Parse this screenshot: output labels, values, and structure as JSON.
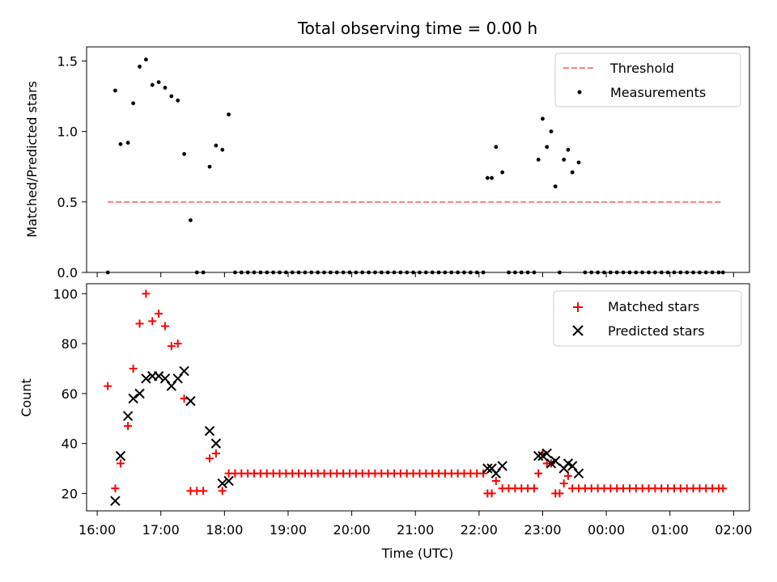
{
  "chart_data": [
    {
      "type": "scatter",
      "title": "Total observing time = 0.00 h",
      "ylabel": "Matched/Predicted stars",
      "xlabel": "",
      "ylim": [
        0,
        1.6
      ],
      "yticks": [
        "0.0",
        "0.5",
        "1.0",
        "1.5"
      ],
      "threshold": {
        "name": "Threshold",
        "value": 0.5,
        "x_range": [
          "16:10",
          "25:50"
        ],
        "color": "#ff7f7f",
        "style": "dashed"
      },
      "measurements": {
        "name": "Measurements",
        "color": "#000000",
        "points": [
          [
            "16:10",
            0.0
          ],
          [
            "16:17",
            1.29
          ],
          [
            "16:22",
            0.91
          ],
          [
            "16:29",
            0.92
          ],
          [
            "16:34",
            1.2
          ],
          [
            "16:40",
            1.46
          ],
          [
            "16:46",
            1.51
          ],
          [
            "16:52",
            1.33
          ],
          [
            "16:58",
            1.35
          ],
          [
            "17:04",
            1.31
          ],
          [
            "17:10",
            1.25
          ],
          [
            "17:16",
            1.22
          ],
          [
            "17:22",
            0.84
          ],
          [
            "17:28",
            0.37
          ],
          [
            "17:34",
            0.0
          ],
          [
            "17:40",
            0.0
          ],
          [
            "17:46",
            0.75
          ],
          [
            "17:52",
            0.9
          ],
          [
            "17:58",
            0.87
          ],
          [
            "18:04",
            1.12
          ],
          [
            "18:10",
            0.0
          ],
          [
            "18:16",
            0.0
          ],
          [
            "18:22",
            0.0
          ],
          [
            "18:28",
            0.0
          ],
          [
            "18:34",
            0.0
          ],
          [
            "18:40",
            0.0
          ],
          [
            "18:46",
            0.0
          ],
          [
            "18:52",
            0.0
          ],
          [
            "18:58",
            0.0
          ],
          [
            "19:04",
            0.0
          ],
          [
            "19:10",
            0.0
          ],
          [
            "19:16",
            0.0
          ],
          [
            "19:22",
            0.0
          ],
          [
            "19:28",
            0.0
          ],
          [
            "19:34",
            0.0
          ],
          [
            "19:40",
            0.0
          ],
          [
            "19:46",
            0.0
          ],
          [
            "19:52",
            0.0
          ],
          [
            "19:58",
            0.0
          ],
          [
            "20:04",
            0.0
          ],
          [
            "20:10",
            0.0
          ],
          [
            "20:16",
            0.0
          ],
          [
            "20:22",
            0.0
          ],
          [
            "20:28",
            0.0
          ],
          [
            "20:34",
            0.0
          ],
          [
            "20:40",
            0.0
          ],
          [
            "20:46",
            0.0
          ],
          [
            "20:52",
            0.0
          ],
          [
            "20:58",
            0.0
          ],
          [
            "21:04",
            0.0
          ],
          [
            "21:10",
            0.0
          ],
          [
            "21:16",
            0.0
          ],
          [
            "21:22",
            0.0
          ],
          [
            "21:28",
            0.0
          ],
          [
            "21:34",
            0.0
          ],
          [
            "21:40",
            0.0
          ],
          [
            "21:46",
            0.0
          ],
          [
            "21:52",
            0.0
          ],
          [
            "21:58",
            0.0
          ],
          [
            "22:04",
            0.0
          ],
          [
            "22:08",
            0.67
          ],
          [
            "22:12",
            0.67
          ],
          [
            "22:16",
            0.89
          ],
          [
            "22:22",
            0.71
          ],
          [
            "22:28",
            0.0
          ],
          [
            "22:34",
            0.0
          ],
          [
            "22:40",
            0.0
          ],
          [
            "22:46",
            0.0
          ],
          [
            "22:52",
            0.0
          ],
          [
            "22:56",
            0.8
          ],
          [
            "23:00",
            1.09
          ],
          [
            "23:04",
            0.89
          ],
          [
            "23:08",
            1.0
          ],
          [
            "23:12",
            0.61
          ],
          [
            "23:16",
            0.0
          ],
          [
            "23:20",
            0.8
          ],
          [
            "23:24",
            0.87
          ],
          [
            "23:28",
            0.71
          ],
          [
            "23:34",
            0.78
          ],
          [
            "23:40",
            0.0
          ],
          [
            "23:46",
            0.0
          ],
          [
            "23:52",
            0.0
          ],
          [
            "23:58",
            0.0
          ],
          [
            "24:04",
            0.0
          ],
          [
            "24:10",
            0.0
          ],
          [
            "24:16",
            0.0
          ],
          [
            "24:22",
            0.0
          ],
          [
            "24:28",
            0.0
          ],
          [
            "24:34",
            0.0
          ],
          [
            "24:40",
            0.0
          ],
          [
            "24:46",
            0.0
          ],
          [
            "24:52",
            0.0
          ],
          [
            "24:58",
            0.0
          ],
          [
            "25:04",
            0.0
          ],
          [
            "25:10",
            0.0
          ],
          [
            "25:16",
            0.0
          ],
          [
            "25:22",
            0.0
          ],
          [
            "25:28",
            0.0
          ],
          [
            "25:34",
            0.0
          ],
          [
            "25:40",
            0.0
          ],
          [
            "25:46",
            0.0
          ],
          [
            "25:50",
            0.0
          ]
        ]
      },
      "legend": {
        "position": "upper right",
        "entries": [
          "Threshold",
          "Measurements"
        ]
      }
    },
    {
      "type": "scatter",
      "title": "",
      "ylabel": "Count",
      "xlabel": "Time (UTC)",
      "xlim": [
        "15:50",
        "26:15"
      ],
      "ylim": [
        13,
        104
      ],
      "yticks": [
        "20",
        "40",
        "60",
        "80",
        "100"
      ],
      "xticks": [
        "16:00",
        "17:00",
        "18:00",
        "19:00",
        "20:00",
        "21:00",
        "22:00",
        "23:00",
        "00:00",
        "01:00",
        "02:00"
      ],
      "series": [
        {
          "name": "Matched stars",
          "marker": "+",
          "color": "#ff0000",
          "points": [
            [
              "16:10",
              63
            ],
            [
              "16:17",
              22
            ],
            [
              "16:22",
              32
            ],
            [
              "16:29",
              47
            ],
            [
              "16:34",
              70
            ],
            [
              "16:40",
              88
            ],
            [
              "16:46",
              100
            ],
            [
              "16:52",
              89
            ],
            [
              "16:58",
              92
            ],
            [
              "17:04",
              87
            ],
            [
              "17:10",
              79
            ],
            [
              "17:16",
              80
            ],
            [
              "17:22",
              58
            ],
            [
              "17:28",
              21
            ],
            [
              "17:34",
              21
            ],
            [
              "17:40",
              21
            ],
            [
              "17:46",
              34
            ],
            [
              "17:52",
              36
            ],
            [
              "17:58",
              21
            ],
            [
              "18:04",
              28
            ],
            [
              "18:10",
              28
            ],
            [
              "18:16",
              28
            ],
            [
              "18:22",
              28
            ],
            [
              "18:28",
              28
            ],
            [
              "18:34",
              28
            ],
            [
              "18:40",
              28
            ],
            [
              "18:46",
              28
            ],
            [
              "18:52",
              28
            ],
            [
              "18:58",
              28
            ],
            [
              "19:04",
              28
            ],
            [
              "19:10",
              28
            ],
            [
              "19:16",
              28
            ],
            [
              "19:22",
              28
            ],
            [
              "19:28",
              28
            ],
            [
              "19:34",
              28
            ],
            [
              "19:40",
              28
            ],
            [
              "19:46",
              28
            ],
            [
              "19:52",
              28
            ],
            [
              "19:58",
              28
            ],
            [
              "20:04",
              28
            ],
            [
              "20:10",
              28
            ],
            [
              "20:16",
              28
            ],
            [
              "20:22",
              28
            ],
            [
              "20:28",
              28
            ],
            [
              "20:34",
              28
            ],
            [
              "20:40",
              28
            ],
            [
              "20:46",
              28
            ],
            [
              "20:52",
              28
            ],
            [
              "20:58",
              28
            ],
            [
              "21:04",
              28
            ],
            [
              "21:10",
              28
            ],
            [
              "21:16",
              28
            ],
            [
              "21:22",
              28
            ],
            [
              "21:28",
              28
            ],
            [
              "21:34",
              28
            ],
            [
              "21:40",
              28
            ],
            [
              "21:46",
              28
            ],
            [
              "21:52",
              28
            ],
            [
              "21:58",
              28
            ],
            [
              "22:04",
              28
            ],
            [
              "22:08",
              20
            ],
            [
              "22:12",
              20
            ],
            [
              "22:16",
              25
            ],
            [
              "22:22",
              22
            ],
            [
              "22:28",
              22
            ],
            [
              "22:34",
              22
            ],
            [
              "22:40",
              22
            ],
            [
              "22:46",
              22
            ],
            [
              "22:52",
              22
            ],
            [
              "22:56",
              28
            ],
            [
              "23:00",
              36
            ],
            [
              "23:04",
              32
            ],
            [
              "23:08",
              32
            ],
            [
              "23:12",
              20
            ],
            [
              "23:16",
              20
            ],
            [
              "23:20",
              24
            ],
            [
              "23:24",
              27
            ],
            [
              "23:28",
              22
            ],
            [
              "23:34",
              22
            ],
            [
              "23:40",
              22
            ],
            [
              "23:46",
              22
            ],
            [
              "23:52",
              22
            ],
            [
              "23:58",
              22
            ],
            [
              "24:04",
              22
            ],
            [
              "24:10",
              22
            ],
            [
              "24:16",
              22
            ],
            [
              "24:22",
              22
            ],
            [
              "24:28",
              22
            ],
            [
              "24:34",
              22
            ],
            [
              "24:40",
              22
            ],
            [
              "24:46",
              22
            ],
            [
              "24:52",
              22
            ],
            [
              "24:58",
              22
            ],
            [
              "25:04",
              22
            ],
            [
              "25:10",
              22
            ],
            [
              "25:16",
              22
            ],
            [
              "25:22",
              22
            ],
            [
              "25:28",
              22
            ],
            [
              "25:34",
              22
            ],
            [
              "25:40",
              22
            ],
            [
              "25:46",
              22
            ],
            [
              "25:50",
              22
            ]
          ]
        },
        {
          "name": "Predicted stars",
          "marker": "x",
          "color": "#000000",
          "points": [
            [
              "16:17",
              17
            ],
            [
              "16:22",
              35
            ],
            [
              "16:29",
              51
            ],
            [
              "16:34",
              58
            ],
            [
              "16:40",
              60
            ],
            [
              "16:46",
              66
            ],
            [
              "16:52",
              67
            ],
            [
              "16:58",
              67
            ],
            [
              "17:04",
              66
            ],
            [
              "17:10",
              63
            ],
            [
              "17:16",
              66
            ],
            [
              "17:22",
              69
            ],
            [
              "17:28",
              57
            ],
            [
              "17:46",
              45
            ],
            [
              "17:52",
              40
            ],
            [
              "17:58",
              24
            ],
            [
              "18:04",
              25
            ],
            [
              "22:08",
              30
            ],
            [
              "22:12",
              30
            ],
            [
              "22:16",
              28
            ],
            [
              "22:22",
              31
            ],
            [
              "22:56",
              35
            ],
            [
              "23:00",
              35
            ],
            [
              "23:04",
              36
            ],
            [
              "23:08",
              32
            ],
            [
              "23:12",
              33
            ],
            [
              "23:20",
              30
            ],
            [
              "23:24",
              32
            ],
            [
              "23:28",
              31
            ],
            [
              "23:34",
              28
            ]
          ]
        }
      ],
      "legend": {
        "position": "upper right",
        "entries": [
          "Matched stars",
          "Predicted stars"
        ]
      }
    }
  ]
}
